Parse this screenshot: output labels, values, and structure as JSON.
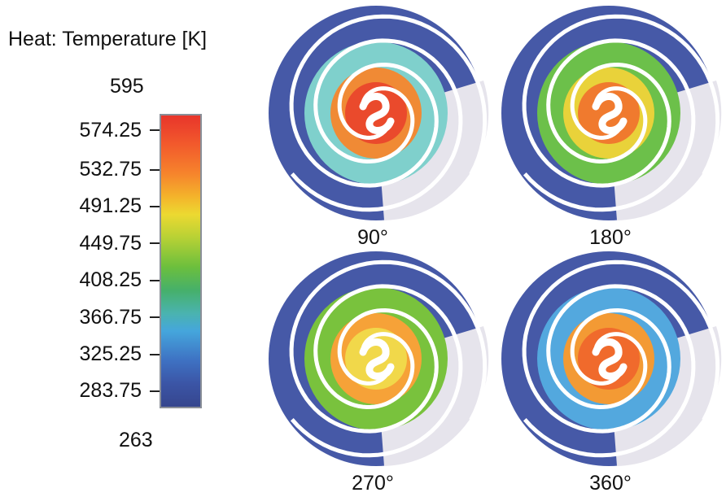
{
  "legend": {
    "title": "Heat: Temperature [K]",
    "max_label": "595",
    "min_label": "263",
    "tick_labels": [
      "574.25",
      "532.75",
      "491.25",
      "449.75",
      "408.25",
      "366.75",
      "325.25",
      "283.75"
    ]
  },
  "panels": [
    {
      "label": "90°",
      "ring_color": "#7fd0cc",
      "core_color": "#ea4a2c",
      "mid_color": "#f08a35"
    },
    {
      "label": "180°",
      "ring_color": "#6cc04a",
      "core_color": "#f07a2e",
      "mid_color": "#e9d23a"
    },
    {
      "label": "270°",
      "ring_color": "#79c23d",
      "core_color": "#f1d84a",
      "mid_color": "#f6a238"
    },
    {
      "label": "360°",
      "ring_color": "#53a8de",
      "core_color": "#f06a2c",
      "mid_color": "#f39a34"
    }
  ],
  "colors": {
    "outer_blue": "#4659a7",
    "light_sector": "#e6e4ec",
    "scroll_white": "#ffffff"
  }
}
